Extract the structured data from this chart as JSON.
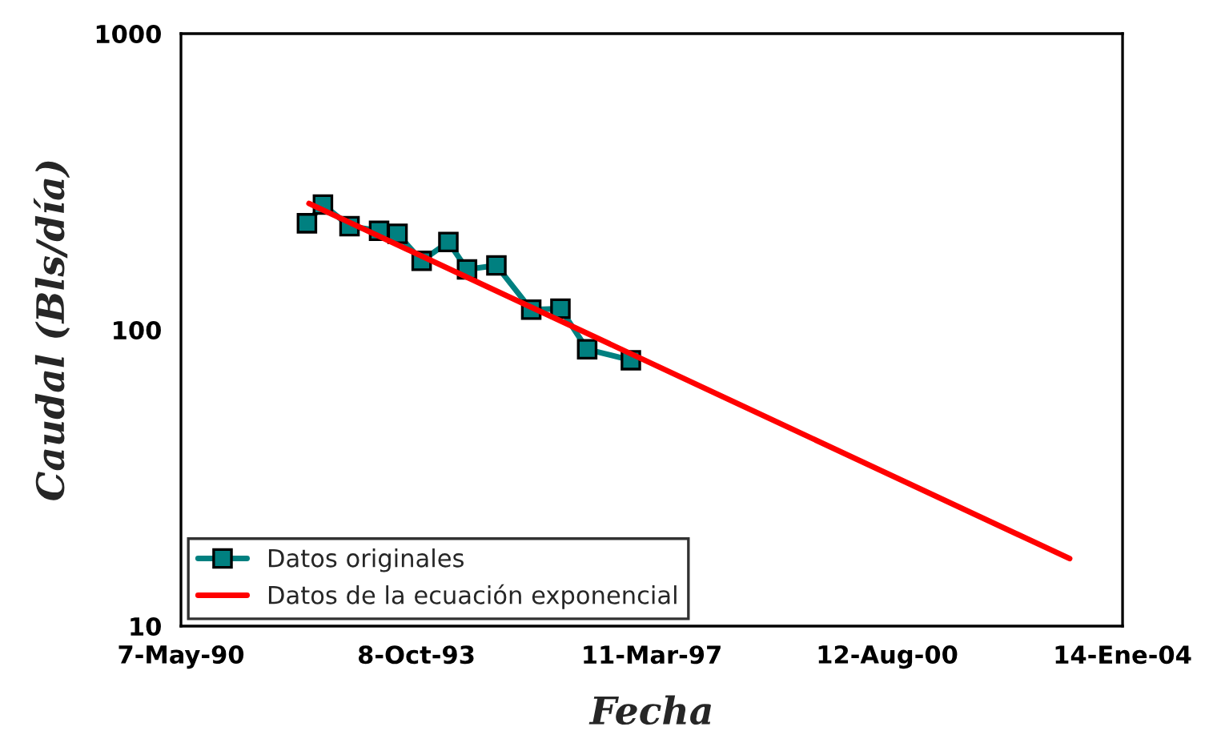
{
  "chart_data": {
    "type": "line",
    "xlabel": "Fecha",
    "ylabel": "Caudal (Bls/día)",
    "log": "y",
    "ylim": [
      10,
      1000
    ],
    "yticks": [
      10,
      100,
      1000
    ],
    "xlim": [
      "1990-05-07",
      "2004-01-14"
    ],
    "xticks": [
      {
        "value": "1990-05-07",
        "label": "7-May-90"
      },
      {
        "value": "1993-10-08",
        "label": "8-Oct-93"
      },
      {
        "value": "1997-03-11",
        "label": "11-Mar-97"
      },
      {
        "value": "2000-08-12",
        "label": "12-Aug-00"
      },
      {
        "value": "2004-01-14",
        "label": "14-Ene-04"
      }
    ],
    "grid": false,
    "legend": "bottom left",
    "series": [
      {
        "name": "Datos originales",
        "color": "#008080",
        "marker": "square",
        "line_style": "solid",
        "x": [
          "1992-03-06",
          "1992-05-30",
          "1992-10-18",
          "1993-03-24",
          "1993-06-30",
          "1993-11-05",
          "1994-03-27",
          "1994-07-04",
          "1994-12-07",
          "1995-06-10",
          "1995-11-12",
          "1996-04-02",
          "1996-11-20"
        ],
        "values": [
          229,
          265,
          224,
          216,
          211,
          171,
          198,
          160,
          165,
          117,
          118,
          86,
          79
        ]
      },
      {
        "name": "Datos de la ecuación exponencial",
        "color": "#ff0000",
        "marker": "none",
        "line_style": "solid",
        "x": [
          "1992-03-17",
          "2003-04-08"
        ],
        "values": [
          267,
          16.9
        ]
      }
    ]
  }
}
